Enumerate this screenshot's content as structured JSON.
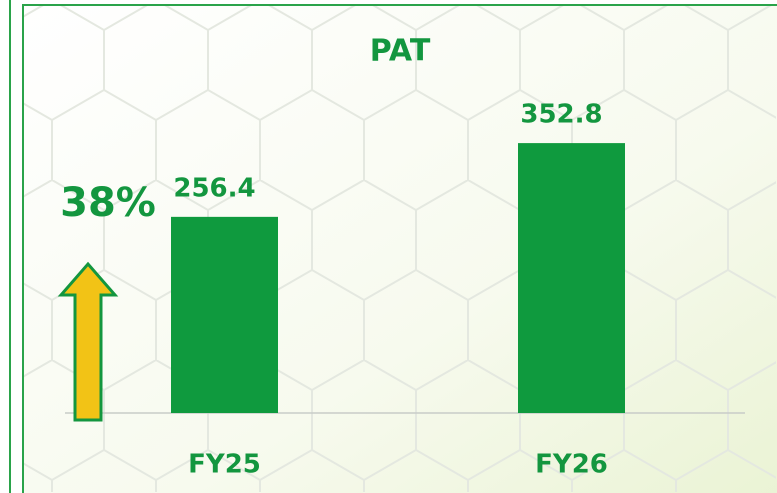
{
  "chart_data": {
    "type": "bar",
    "title": "PAT",
    "categories": [
      "FY25",
      "FY26"
    ],
    "values": [
      256.4,
      352.8
    ],
    "color": "#0f9a3e",
    "annotation": "38%"
  }
}
